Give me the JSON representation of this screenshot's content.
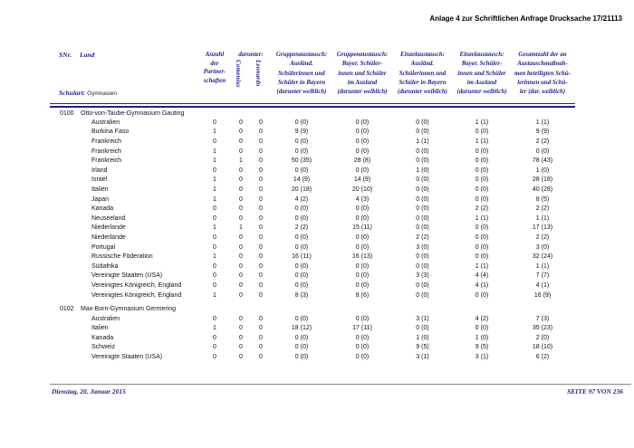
{
  "colors": {
    "navy": "#1f1f8f",
    "body_text": "#111111"
  },
  "page": {
    "title": "Anlage 4 zur Schriftlichen Anfrage Drucksache 17/21113",
    "footer_left": "Dienstag, 20. Januar 2015",
    "footer_right": "SEITE 97 VON 236"
  },
  "table": {
    "header": {
      "snr": "SNr.",
      "land": "Land",
      "schulart_label": "Schulart:",
      "schulart_value": "Gymnasien",
      "anzahl_lines": [
        "Anzahl",
        "der",
        "Partner-",
        "schaften"
      ],
      "darunter": "darunter:",
      "comenius": "Comenius",
      "leonardo": "Leonardo",
      "group_columns": [
        [
          "Gruppenaustausch:",
          "Ausländ.",
          "Schülerinnen und",
          "Schüler in Bayern",
          "(darunter weiblich)"
        ],
        [
          "Gruppenaustausch:",
          "Bayer. Schüler-",
          "innen und Schüler",
          "im Ausland",
          "(darunter weiblich)"
        ],
        [
          "Einzelaustausch:",
          "Ausländ.",
          "Schülerinnen und",
          "Schüler in Bayern",
          "(darunter weiblich)"
        ],
        [
          "Einzelaustausch:",
          "Bayer. Schüler-",
          "innen und Schüler",
          "im Ausland",
          "(darunter weiblich)"
        ],
        [
          "Gesamtzahl der an",
          "Austauschmaßnah-",
          "men beteiligten Schü-",
          "lerinnen und Schü-",
          "ler (dar. weiblich)"
        ]
      ]
    },
    "groups": [
      {
        "snr": "0100",
        "school": "Otto-von-Taube-Gymnasium Gauting",
        "rows": [
          {
            "land": "Australien",
            "anzahl": "0",
            "comenius": "0",
            "leonardo": "0",
            "cols": [
              "0 (0)",
              "0 (0)",
              "0 (0)",
              "1 (1)",
              "1 (1)"
            ]
          },
          {
            "land": "Burkina Faso",
            "anzahl": "1",
            "comenius": "0",
            "leonardo": "0",
            "cols": [
              "9 (9)",
              "0 (0)",
              "0 (0)",
              "0 (0)",
              "9 (9)"
            ]
          },
          {
            "land": "Frankreich",
            "anzahl": "0",
            "comenius": "0",
            "leonardo": "0",
            "cols": [
              "0 (0)",
              "0 (0)",
              "1 (1)",
              "1 (1)",
              "2 (2)"
            ]
          },
          {
            "land": "Frankreich",
            "anzahl": "1",
            "comenius": "0",
            "leonardo": "0",
            "cols": [
              "0 (0)",
              "0 (0)",
              "0 (0)",
              "0 (0)",
              "0 (0)"
            ]
          },
          {
            "land": "Frankreich",
            "anzahl": "1",
            "comenius": "1",
            "leonardo": "0",
            "cols": [
              "50 (35)",
              "28 (8)",
              "0 (0)",
              "0 (0)",
              "78 (43)"
            ]
          },
          {
            "land": "Irland",
            "anzahl": "0",
            "comenius": "0",
            "leonardo": "0",
            "cols": [
              "0 (0)",
              "0 (0)",
              "1 (0)",
              "0 (0)",
              "1 (0)"
            ]
          },
          {
            "land": "Israel",
            "anzahl": "1",
            "comenius": "0",
            "leonardo": "0",
            "cols": [
              "14 (9)",
              "14 (9)",
              "0 (0)",
              "0 (0)",
              "28 (18)"
            ]
          },
          {
            "land": "Italien",
            "anzahl": "1",
            "comenius": "0",
            "leonardo": "0",
            "cols": [
              "20 (18)",
              "20 (10)",
              "0 (0)",
              "0 (0)",
              "40 (28)"
            ]
          },
          {
            "land": "Japan",
            "anzahl": "1",
            "comenius": "0",
            "leonardo": "0",
            "cols": [
              "4 (2)",
              "4 (3)",
              "0 (0)",
              "0 (0)",
              "8 (5)"
            ]
          },
          {
            "land": "Kanada",
            "anzahl": "0",
            "comenius": "0",
            "leonardo": "0",
            "cols": [
              "0 (0)",
              "0 (0)",
              "0 (0)",
              "2 (2)",
              "2 (2)"
            ]
          },
          {
            "land": "Neuseeland",
            "anzahl": "0",
            "comenius": "0",
            "leonardo": "0",
            "cols": [
              "0 (0)",
              "0 (0)",
              "0 (0)",
              "1 (1)",
              "1 (1)"
            ]
          },
          {
            "land": "Niederlande",
            "anzahl": "1",
            "comenius": "1",
            "leonardo": "0",
            "cols": [
              "2 (2)",
              "15 (11)",
              "0 (0)",
              "0 (0)",
              "17 (13)"
            ]
          },
          {
            "land": "Niederlande",
            "anzahl": "0",
            "comenius": "0",
            "leonardo": "0",
            "cols": [
              "0 (0)",
              "0 (0)",
              "2 (2)",
              "0 (0)",
              "2 (2)"
            ]
          },
          {
            "land": "Portugal",
            "anzahl": "0",
            "comenius": "0",
            "leonardo": "0",
            "cols": [
              "0 (0)",
              "0 (0)",
              "3 (0)",
              "0 (0)",
              "3 (0)"
            ]
          },
          {
            "land": "Russische Föderation",
            "anzahl": "1",
            "comenius": "0",
            "leonardo": "0",
            "cols": [
              "16 (11)",
              "16 (13)",
              "0 (0)",
              "0 (0)",
              "32 (24)"
            ]
          },
          {
            "land": "Südafrika",
            "anzahl": "0",
            "comenius": "0",
            "leonardo": "0",
            "cols": [
              "0 (0)",
              "0 (0)",
              "0 (0)",
              "1 (1)",
              "1 (1)"
            ]
          },
          {
            "land": "Vereinigte Staaten (USA)",
            "anzahl": "0",
            "comenius": "0",
            "leonardo": "0",
            "cols": [
              "0 (0)",
              "0 (0)",
              "3 (3)",
              "4 (4)",
              "7 (7)"
            ]
          },
          {
            "land": "Vereinigtes Königreich, England",
            "anzahl": "0",
            "comenius": "0",
            "leonardo": "0",
            "cols": [
              "0 (0)",
              "0 (0)",
              "0 (0)",
              "4 (1)",
              "4 (1)"
            ]
          },
          {
            "land": "Vereinigtes Königreich, England",
            "anzahl": "1",
            "comenius": "0",
            "leonardo": "0",
            "cols": [
              "8 (3)",
              "8 (6)",
              "0 (0)",
              "0 (0)",
              "16 (9)"
            ]
          }
        ]
      },
      {
        "snr": "0102",
        "school": "Max-Born-Gymnasium Germering",
        "rows": [
          {
            "land": "Australien",
            "anzahl": "0",
            "comenius": "0",
            "leonardo": "0",
            "cols": [
              "0 (0)",
              "0 (0)",
              "3 (1)",
              "4 (2)",
              "7 (3)"
            ]
          },
          {
            "land": "Italien",
            "anzahl": "1",
            "comenius": "0",
            "leonardo": "0",
            "cols": [
              "18 (12)",
              "17 (11)",
              "0 (0)",
              "0 (0)",
              "35 (23)"
            ]
          },
          {
            "land": "Kanada",
            "anzahl": "0",
            "comenius": "0",
            "leonardo": "0",
            "cols": [
              "0 (0)",
              "0 (0)",
              "1 (0)",
              "1 (0)",
              "2 (0)"
            ]
          },
          {
            "land": "Schweiz",
            "anzahl": "0",
            "comenius": "0",
            "leonardo": "0",
            "cols": [
              "0 (0)",
              "0 (0)",
              "9 (5)",
              "9 (5)",
              "18 (10)"
            ]
          },
          {
            "land": "Vereinigte Staaten (USA)",
            "anzahl": "0",
            "comenius": "0",
            "leonardo": "0",
            "cols": [
              "0 (0)",
              "0 (0)",
              "3 (1)",
              "3 (1)",
              "6 (2)"
            ]
          }
        ]
      }
    ]
  }
}
